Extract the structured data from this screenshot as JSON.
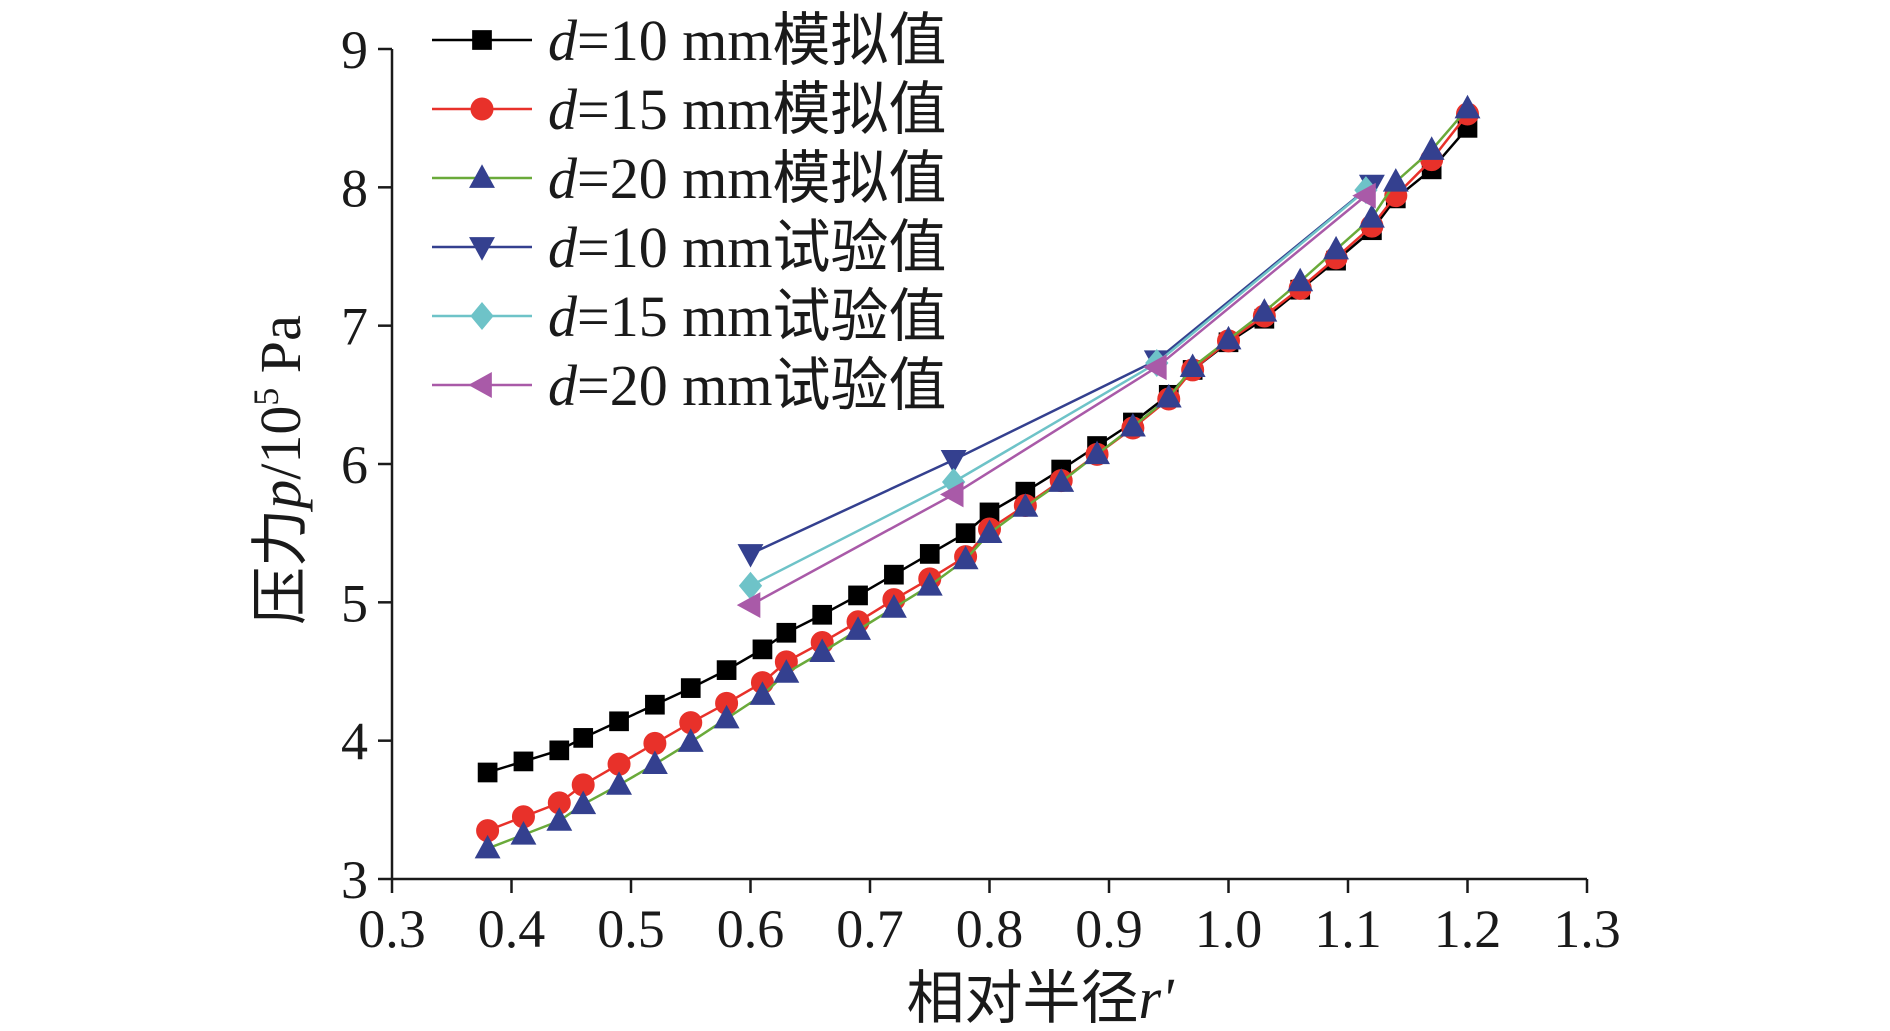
{
  "chart_data": {
    "type": "line",
    "title": "",
    "xlabel_prefix": "相对半径",
    "xlabel_var": "r'",
    "ylabel_prefix": "压力",
    "ylabel_var": "p",
    "ylabel_unit_base": "/10",
    "ylabel_unit_exp": "5",
    "ylabel_unit_suffix": " Pa",
    "xlim": [
      0.3,
      1.3
    ],
    "ylim": [
      3,
      9
    ],
    "x_ticks": [
      "0.3",
      "0.4",
      "0.5",
      "0.6",
      "0.7",
      "0.8",
      "0.9",
      "1.0",
      "1.1",
      "1.2",
      "1.3"
    ],
    "y_ticks": [
      "3",
      "4",
      "5",
      "6",
      "7",
      "8",
      "9"
    ],
    "legend_position": "top-left",
    "series": [
      {
        "name_var": "d",
        "name_rest": "=10 mm模拟值",
        "color": "#000000",
        "marker": "square",
        "x": [
          0.38,
          0.41,
          0.44,
          0.46,
          0.49,
          0.52,
          0.55,
          0.58,
          0.61,
          0.63,
          0.66,
          0.69,
          0.72,
          0.75,
          0.78,
          0.8,
          0.83,
          0.86,
          0.89,
          0.92,
          0.95,
          0.97,
          1.0,
          1.03,
          1.06,
          1.09,
          1.12,
          1.14,
          1.17,
          1.2
        ],
        "y": [
          3.77,
          3.85,
          3.93,
          4.02,
          4.14,
          4.26,
          4.38,
          4.51,
          4.66,
          4.78,
          4.91,
          5.05,
          5.2,
          5.35,
          5.5,
          5.65,
          5.8,
          5.96,
          6.13,
          6.3,
          6.5,
          6.68,
          6.88,
          7.05,
          7.26,
          7.47,
          7.69,
          7.92,
          8.13,
          8.43
        ]
      },
      {
        "name_var": "d",
        "name_rest": "=15 mm模拟值",
        "color": "#e8312a",
        "marker": "circle",
        "x": [
          0.38,
          0.41,
          0.44,
          0.46,
          0.49,
          0.52,
          0.55,
          0.58,
          0.61,
          0.63,
          0.66,
          0.69,
          0.72,
          0.75,
          0.78,
          0.8,
          0.83,
          0.86,
          0.89,
          0.92,
          0.95,
          0.97,
          1.0,
          1.03,
          1.06,
          1.09,
          1.12,
          1.14,
          1.17,
          1.2
        ],
        "y": [
          3.35,
          3.45,
          3.55,
          3.68,
          3.83,
          3.98,
          4.13,
          4.27,
          4.42,
          4.57,
          4.71,
          4.86,
          5.02,
          5.17,
          5.33,
          5.53,
          5.7,
          5.88,
          6.07,
          6.26,
          6.47,
          6.68,
          6.89,
          7.07,
          7.27,
          7.49,
          7.72,
          7.94,
          8.2,
          8.53
        ]
      },
      {
        "name_var": "d",
        "name_rest": "=20 mm模拟值",
        "color": "#6aaa3a",
        "marker_color": "#34408f",
        "marker": "triangle-up",
        "x": [
          0.38,
          0.41,
          0.44,
          0.46,
          0.49,
          0.52,
          0.55,
          0.58,
          0.61,
          0.63,
          0.66,
          0.69,
          0.72,
          0.75,
          0.78,
          0.8,
          0.83,
          0.86,
          0.89,
          0.92,
          0.95,
          0.97,
          1.0,
          1.03,
          1.06,
          1.09,
          1.12,
          1.14,
          1.17,
          1.2
        ],
        "y": [
          3.22,
          3.32,
          3.42,
          3.54,
          3.68,
          3.83,
          3.99,
          4.16,
          4.33,
          4.49,
          4.64,
          4.8,
          4.96,
          5.12,
          5.31,
          5.5,
          5.69,
          5.87,
          6.07,
          6.27,
          6.48,
          6.7,
          6.9,
          7.1,
          7.32,
          7.55,
          7.78,
          8.04,
          8.27,
          8.57
        ]
      },
      {
        "name_var": "d",
        "name_rest": "=10 mm试验值",
        "color": "#34408f",
        "marker": "triangle-down",
        "x": [
          0.6,
          0.77,
          0.94,
          1.12
        ],
        "y": [
          5.35,
          6.03,
          6.75,
          8.02
        ]
      },
      {
        "name_var": "d",
        "name_rest": "=15 mm试验值",
        "color": "#6ec3c8",
        "marker": "diamond",
        "x": [
          0.6,
          0.77,
          0.94,
          1.115
        ],
        "y": [
          5.12,
          5.87,
          6.73,
          7.98
        ]
      },
      {
        "name_var": "d",
        "name_rest": "=20 mm试验值",
        "color": "#a95aa8",
        "marker": "triangle-left",
        "x": [
          0.6,
          0.77,
          0.94,
          1.115
        ],
        "y": [
          4.98,
          5.78,
          6.7,
          7.94
        ]
      }
    ]
  }
}
